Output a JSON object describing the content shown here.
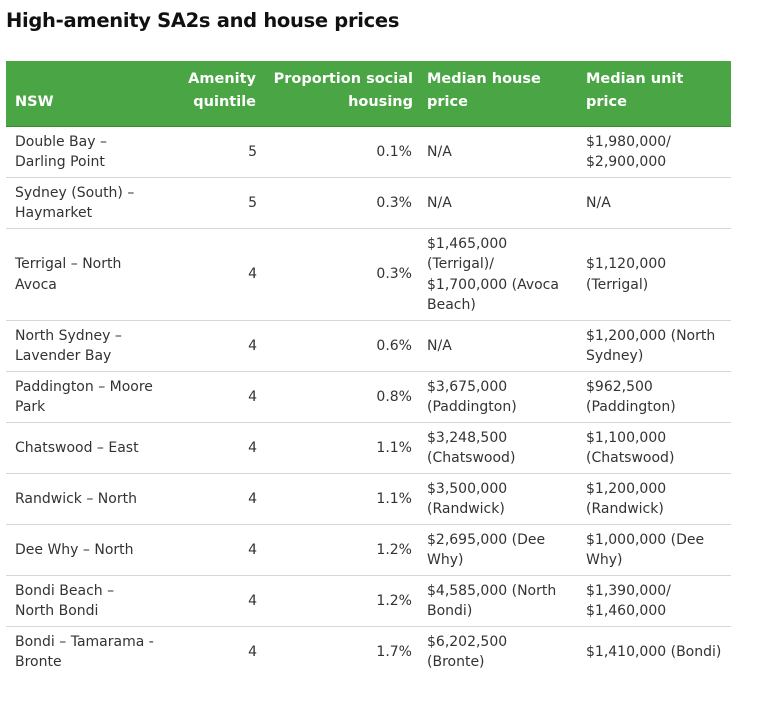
{
  "title": "High-amenity SA2s and house prices",
  "table": {
    "headers": {
      "region": "NSW",
      "amenity": "Amenity quintile",
      "social": "Proportion social housing",
      "house": "Median house price",
      "unit": "Median unit price"
    },
    "rows": [
      {
        "region": "Double Bay – Darling Point",
        "amenity": "5",
        "social": "0.1%",
        "house": "N/A",
        "unit": "$1,980,000/ $2,900,000"
      },
      {
        "region": "Sydney (South) – Haymarket",
        "amenity": "5",
        "social": "0.3%",
        "house": "N/A",
        "unit": "N/A"
      },
      {
        "region": "Terrigal – North Avoca",
        "amenity": "4",
        "social": "0.3%",
        "house": "$1,465,000 (Terrigal)/ $1,700,000 (Avoca Beach)",
        "unit": "$1,120,000 (Terrigal)"
      },
      {
        "region": "North Sydney – Lavender Bay",
        "amenity": "4",
        "social": "0.6%",
        "house": "N/A",
        "unit": "$1,200,000 (North Sydney)"
      },
      {
        "region": "Paddington – Moore Park",
        "amenity": "4",
        "social": "0.8%",
        "house": "$3,675,000 (Paddington)",
        "unit": "$962,500 (Paddington)"
      },
      {
        "region": "Chatswood – East",
        "amenity": "4",
        "social": "1.1%",
        "house": "$3,248,500 (Chatswood)",
        "unit": "$1,100,000 (Chatswood)"
      },
      {
        "region": "Randwick – North",
        "amenity": "4",
        "social": "1.1%",
        "house": "$3,500,000 (Randwick)",
        "unit": "$1,200,000 (Randwick)"
      },
      {
        "region": "Dee Why – North",
        "amenity": "4",
        "social": "1.2%",
        "house": "$2,695,000 (Dee Why)",
        "unit": "$1,000,000 (Dee Why)"
      },
      {
        "region": "Bondi Beach – North Bondi",
        "amenity": "4",
        "social": "1.2%",
        "house": "$4,585,000 (North Bondi)",
        "unit": "$1,390,000/ $1,460,000"
      },
      {
        "region": "Bondi – Tamarama - Bronte",
        "amenity": "4",
        "social": "1.7%",
        "house": "$6,202,500 (Bronte)",
        "unit": "$1,410,000 (Bondi)"
      }
    ]
  }
}
